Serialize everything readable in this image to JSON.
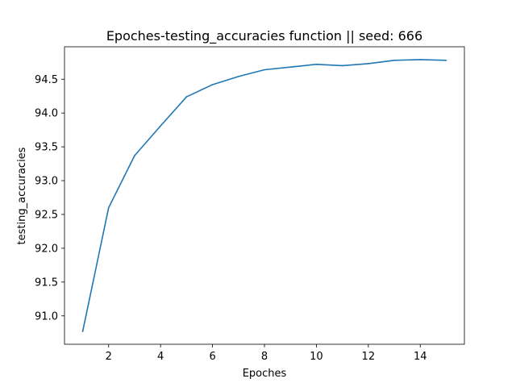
{
  "chart_data": {
    "type": "line",
    "title": "Epoches-testing_accuracies function || seed: 666",
    "xlabel": "Epoches",
    "ylabel": "testing_accuracies",
    "xlim": [
      0.3,
      15.7
    ],
    "ylim": [
      90.58,
      94.98
    ],
    "xticks": [
      2,
      4,
      6,
      8,
      10,
      12,
      14
    ],
    "yticks": [
      91.0,
      91.5,
      92.0,
      92.5,
      93.0,
      93.5,
      94.0,
      94.5
    ],
    "grid": false,
    "series": [
      {
        "color": "#1f77b4",
        "x": [
          1,
          2,
          3,
          4,
          5,
          6,
          7,
          8,
          9,
          10,
          11,
          12,
          13,
          14,
          15
        ],
        "y": [
          90.77,
          92.6,
          93.37,
          93.81,
          94.24,
          94.42,
          94.54,
          94.64,
          94.68,
          94.72,
          94.7,
          94.73,
          94.78,
          94.79,
          94.78
        ]
      }
    ]
  }
}
